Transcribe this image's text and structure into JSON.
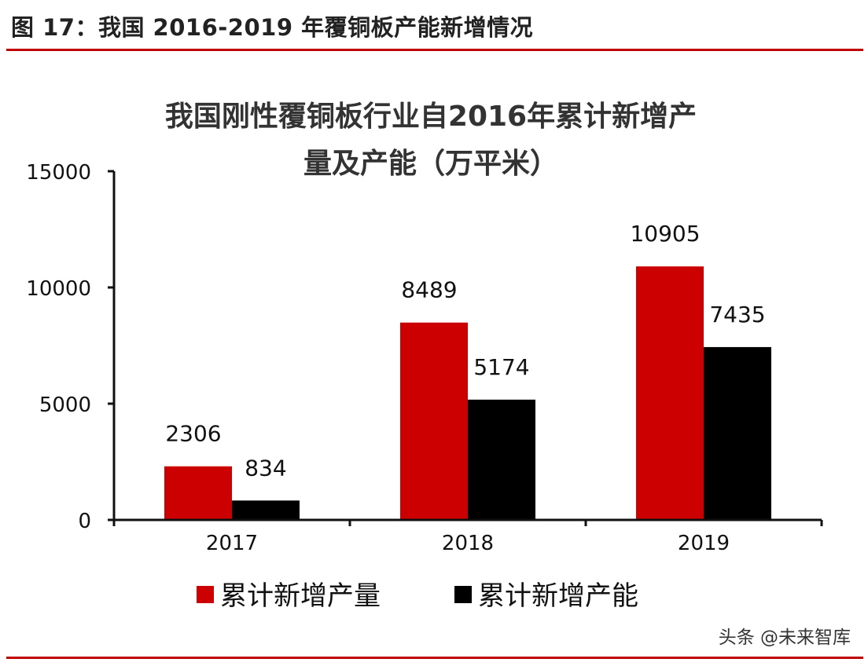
{
  "figure": {
    "title": "图 17：我国 2016-2019 年覆铜板产能新增情况",
    "watermark": "头条 @未来智库"
  },
  "colors": {
    "accent": "#c00000",
    "series1": "#cc0000",
    "series2": "#000000"
  },
  "chart_data": {
    "type": "bar",
    "title_lines": [
      "我国刚性覆铜板行业自2016年累计新增产",
      "量及产能（万平米）"
    ],
    "categories": [
      "2017",
      "2018",
      "2019"
    ],
    "series": [
      {
        "name": "累计新增产量",
        "values": [
          2306,
          8489,
          10905
        ],
        "color": "#cc0000"
      },
      {
        "name": "累计新增产能",
        "values": [
          834,
          5174,
          7435
        ],
        "color": "#000000"
      }
    ],
    "ylim": [
      0,
      15000
    ],
    "yticks": [
      0,
      5000,
      10000,
      15000
    ],
    "legend": "bottom",
    "grid": false
  }
}
